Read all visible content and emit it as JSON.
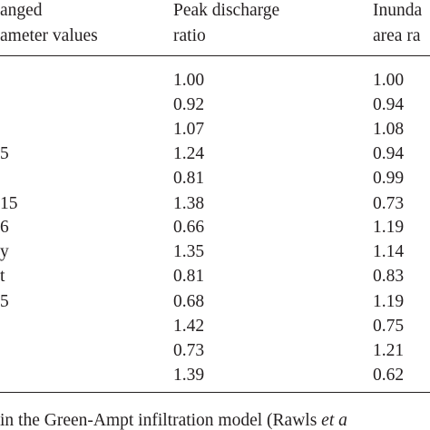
{
  "header": {
    "col1_line1": "anged",
    "col1_line2": "ameter values",
    "col2_line1": "Peak discharge",
    "col2_line2": "ratio",
    "col3_line1": "Inunda",
    "col3_line2": "area ra"
  },
  "rows": [
    {
      "label": "",
      "peak": "1.00",
      "area": "1.00"
    },
    {
      "label": "",
      "peak": "0.92",
      "area": "0.94"
    },
    {
      "label": "",
      "peak": "1.07",
      "area": "1.08"
    },
    {
      "label": "5",
      "peak": "1.24",
      "area": "0.94"
    },
    {
      "label": "",
      "peak": "0.81",
      "area": "0.99"
    },
    {
      "label": "15",
      "peak": "1.38",
      "area": "0.73"
    },
    {
      "label": "6",
      "peak": "0.66",
      "area": "1.19"
    },
    {
      "label": "y",
      "peak": "1.35",
      "area": "1.14"
    },
    {
      "label": "t",
      "peak": "0.81",
      "area": "0.83"
    },
    {
      "label": "5",
      "peak": "0.68",
      "area": "1.19"
    },
    {
      "label": "",
      "peak": "1.42",
      "area": "0.75"
    },
    {
      "label": "",
      "peak": "0.73",
      "area": "1.21"
    },
    {
      "label": "",
      "peak": "1.39",
      "area": "0.62"
    }
  ],
  "footnote": {
    "text": "in the Green-Ampt infiltration model (Rawls ",
    "italic": "et a"
  }
}
